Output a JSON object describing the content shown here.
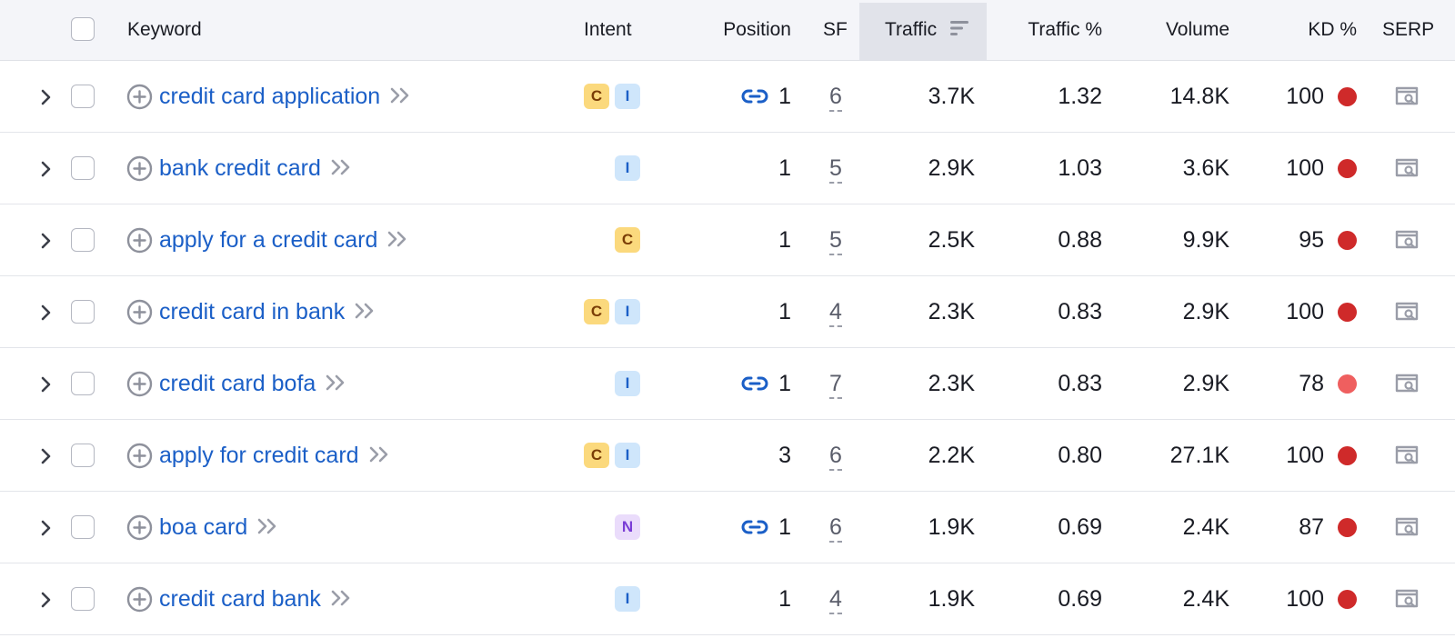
{
  "columns": {
    "keyword": "Keyword",
    "intent": "Intent",
    "position": "Position",
    "sf": "SF",
    "traffic": "Traffic",
    "traffic_pct": "Traffic %",
    "volume": "Volume",
    "kd": "KD %",
    "serp": "SERP"
  },
  "colors": {
    "link": "#1b5fc7",
    "kd_hard": "#cf2a2a",
    "kd_medium": "#ef5f5f"
  },
  "rows": [
    {
      "keyword": "credit card application",
      "intents": [
        "C",
        "I"
      ],
      "position_link": true,
      "position": "1",
      "sf": "6",
      "traffic": "3.7K",
      "traffic_pct": "1.32",
      "volume": "14.8K",
      "kd": "100",
      "kd_color": "#cf2a2a"
    },
    {
      "keyword": "bank credit card",
      "intents": [
        "I"
      ],
      "position_link": false,
      "position": "1",
      "sf": "5",
      "traffic": "2.9K",
      "traffic_pct": "1.03",
      "volume": "3.6K",
      "kd": "100",
      "kd_color": "#cf2a2a"
    },
    {
      "keyword": "apply for a credit card",
      "intents": [
        "C"
      ],
      "position_link": false,
      "position": "1",
      "sf": "5",
      "traffic": "2.5K",
      "traffic_pct": "0.88",
      "volume": "9.9K",
      "kd": "95",
      "kd_color": "#cf2a2a"
    },
    {
      "keyword": "credit card in bank",
      "intents": [
        "C",
        "I"
      ],
      "position_link": false,
      "position": "1",
      "sf": "4",
      "traffic": "2.3K",
      "traffic_pct": "0.83",
      "volume": "2.9K",
      "kd": "100",
      "kd_color": "#cf2a2a"
    },
    {
      "keyword": "credit card bofa",
      "intents": [
        "I"
      ],
      "position_link": true,
      "position": "1",
      "sf": "7",
      "traffic": "2.3K",
      "traffic_pct": "0.83",
      "volume": "2.9K",
      "kd": "78",
      "kd_color": "#ef5f5f"
    },
    {
      "keyword": "apply for credit card",
      "intents": [
        "C",
        "I"
      ],
      "position_link": false,
      "position": "3",
      "sf": "6",
      "traffic": "2.2K",
      "traffic_pct": "0.80",
      "volume": "27.1K",
      "kd": "100",
      "kd_color": "#cf2a2a"
    },
    {
      "keyword": "boa card",
      "intents": [
        "N"
      ],
      "position_link": true,
      "position": "1",
      "sf": "6",
      "traffic": "1.9K",
      "traffic_pct": "0.69",
      "volume": "2.4K",
      "kd": "87",
      "kd_color": "#cf2a2a"
    },
    {
      "keyword": "credit card bank",
      "intents": [
        "I"
      ],
      "position_link": false,
      "position": "1",
      "sf": "4",
      "traffic": "1.9K",
      "traffic_pct": "0.69",
      "volume": "2.4K",
      "kd": "100",
      "kd_color": "#cf2a2a"
    }
  ]
}
